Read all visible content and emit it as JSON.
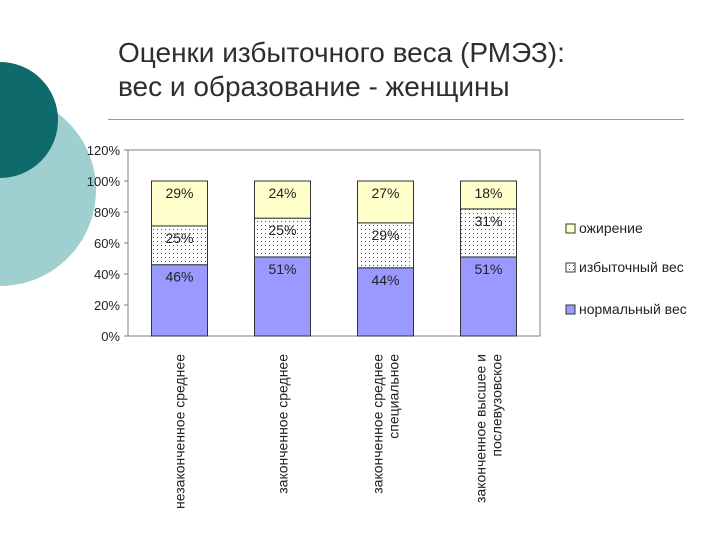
{
  "slide": {
    "title_lines": [
      "Оценки избыточного веса (РМЭЗ):",
      "вес и образование - женщины"
    ],
    "accent_colors": {
      "dark_teal": "#0f6b6b",
      "light_teal": "#9fcfcf"
    }
  },
  "chart_data": {
    "type": "bar",
    "stacked": true,
    "categories": [
      [
        "незаконченное среднее"
      ],
      [
        "законченное среднее"
      ],
      [
        "законченное среднее",
        "специальное"
      ],
      [
        "законченное высшее и",
        "послевузовское"
      ]
    ],
    "series": [
      {
        "name": "нормальный вес",
        "values": [
          46,
          51,
          44,
          51
        ],
        "labels": [
          "46%",
          "51%",
          "44%",
          "51%"
        ],
        "color": "#9999ff",
        "pattern": "solid"
      },
      {
        "name": "избыточный вес",
        "values": [
          25,
          25,
          29,
          31
        ],
        "labels": [
          "25%",
          "25%",
          "29%",
          "31%"
        ],
        "color": "#ffffff",
        "pattern": "dots"
      },
      {
        "name": "ожирение",
        "values": [
          29,
          24,
          27,
          18
        ],
        "labels": [
          "29%",
          "24%",
          "27%",
          "18%"
        ],
        "color": "#ffffcc",
        "pattern": "solid"
      }
    ],
    "y_ticks": [
      "0%",
      "20%",
      "40%",
      "60%",
      "80%",
      "100%",
      "120%"
    ],
    "ylim": [
      0,
      120
    ],
    "legend_position": "right",
    "legend_order": [
      "ожирение",
      "избыточный вес",
      "нормальный вес"
    ],
    "grid": false
  }
}
